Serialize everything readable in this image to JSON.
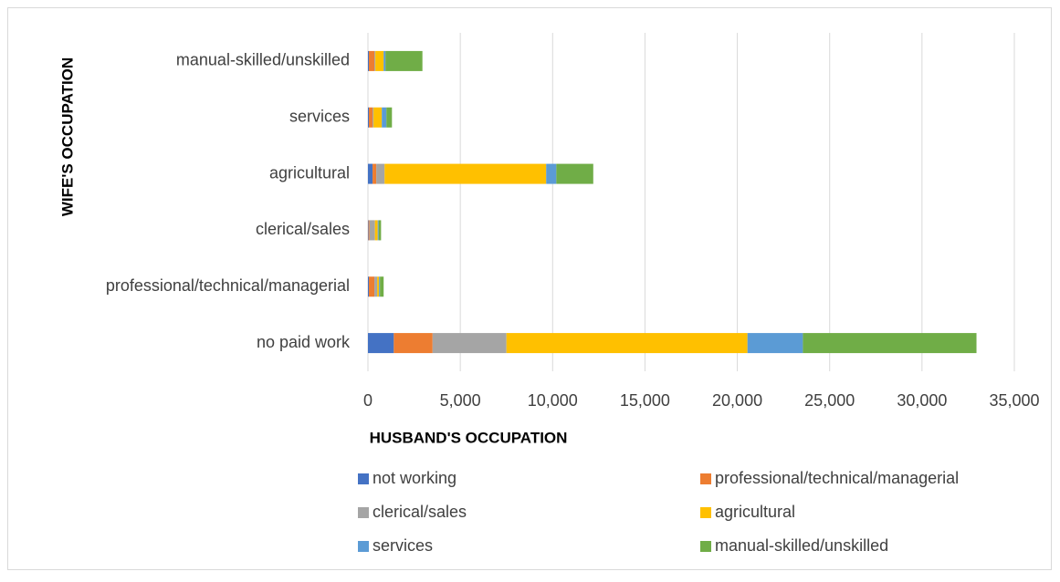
{
  "chart_data": {
    "type": "stacked-bar-horizontal",
    "x_axis_title": "HUSBAND'S OCCUPATION",
    "y_axis_title": "WIFE'S OCCUPATION",
    "categories": [
      "no paid work",
      "professional/technical/managerial",
      "clerical/sales",
      "agricultural",
      "services",
      "manual-skilled/unskilled"
    ],
    "series": [
      {
        "name": "not working",
        "color": "#4472c4",
        "values": [
          1400,
          50,
          30,
          250,
          50,
          50
        ]
      },
      {
        "name": "professional/technical/managerial",
        "color": "#ed7d31",
        "values": [
          2100,
          300,
          50,
          200,
          200,
          300
        ]
      },
      {
        "name": "clerical/sales",
        "color": "#a5a5a5",
        "values": [
          4000,
          150,
          300,
          450,
          50,
          50
        ]
      },
      {
        "name": "agricultural",
        "color": "#ffc000",
        "values": [
          13050,
          100,
          150,
          8750,
          450,
          450
        ]
      },
      {
        "name": "services",
        "color": "#5b9bd5",
        "values": [
          3000,
          50,
          50,
          550,
          250,
          100
        ]
      },
      {
        "name": "manual-skilled/unskilled",
        "color": "#70ad47",
        "values": [
          9400,
          200,
          130,
          2000,
          300,
          2000
        ]
      }
    ],
    "xlim": [
      0,
      35000
    ],
    "xticks": [
      0,
      {
        "value": 5000,
        "label": "5,000"
      },
      {
        "value": 10000,
        "label": "10,000"
      },
      {
        "value": 15000,
        "label": "15,000"
      },
      {
        "value": 20000,
        "label": "20,000"
      },
      {
        "value": 25000,
        "label": "25,000"
      },
      {
        "value": 30000,
        "label": "30,000"
      },
      {
        "value": 35000,
        "label": "35,000"
      }
    ],
    "grid": true,
    "legend_position": "bottom"
  }
}
